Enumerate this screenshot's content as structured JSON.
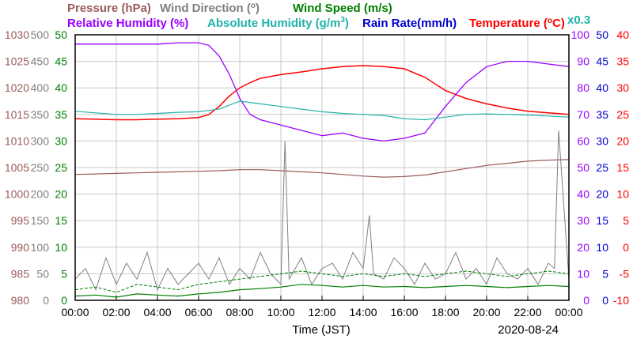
{
  "chart_data": {
    "type": "line",
    "date": "2020-08-24",
    "xlabel": "Time (JST)",
    "x_ticks": [
      "00:00",
      "02:00",
      "04:00",
      "06:00",
      "08:00",
      "10:00",
      "12:00",
      "14:00",
      "16:00",
      "18:00",
      "20:00",
      "22:00",
      "00:00"
    ],
    "xlim_hours": [
      0,
      24
    ],
    "legend": {
      "pressure": "Pressure (hPa)",
      "wind_dir_pre": "Wind Direction (",
      "wind_dir_deg": "o",
      "wind_dir_post": ")",
      "wind_speed": "Wind Speed (m/s)",
      "rh": "Relative Humidity (%)",
      "ah_pre": "Absolute Humidity (g/m",
      "ah_sup": "3",
      "ah_post": ")",
      "rain": "Rain Rate(mm/h)",
      "temp_pre": "Temperature (",
      "temp_deg": "o",
      "temp_post": "C)",
      "rain_scale": "x0.3"
    },
    "axes": {
      "pressure": {
        "min": 980,
        "max": 1030,
        "ticks": [
          980,
          985,
          990,
          995,
          1000,
          1005,
          1010,
          1015,
          1020,
          1025,
          1030
        ],
        "color": "#9b5a5a"
      },
      "wind_direction": {
        "min": 0,
        "max": 500,
        "ticks": [
          0,
          50,
          100,
          150,
          200,
          250,
          300,
          350,
          400,
          450,
          500
        ],
        "color": "#808080"
      },
      "wind_speed": {
        "min": 0,
        "max": 50,
        "ticks": [
          0,
          5,
          10,
          15,
          20,
          25,
          30,
          35,
          40,
          45,
          50
        ],
        "color": "#008000"
      },
      "relative_humidity": {
        "min": 0,
        "max": 100,
        "ticks": [
          0,
          10,
          20,
          30,
          40,
          50,
          60,
          70,
          80,
          90,
          100
        ],
        "color": "#9900ff"
      },
      "rain_rate": {
        "min": 0,
        "max": 50,
        "ticks": [
          0,
          5,
          10,
          15,
          20,
          25,
          30,
          35,
          40,
          45,
          50
        ],
        "color": "#0000cc"
      },
      "temperature": {
        "min": -10,
        "max": 40,
        "ticks": [
          -10,
          -5,
          0,
          5,
          10,
          15,
          20,
          25,
          30,
          35,
          40
        ],
        "color": "#ff0000"
      }
    },
    "colors": {
      "pressure": "#9b5a5a",
      "wind_direction": "#808080",
      "wind_speed": "#008000",
      "relative_humidity": "#9900ff",
      "absolute_humidity": "#20b2aa",
      "rain_rate": "#0000cc",
      "temperature": "#ff0000",
      "grid": "#c8c8c8"
    },
    "series": [
      {
        "key": "pressure",
        "axis": "pressure",
        "x": [
          0,
          1,
          2,
          3,
          4,
          5,
          6,
          7,
          8,
          9,
          10,
          11,
          12,
          13,
          14,
          15,
          16,
          17,
          18,
          19,
          20,
          21,
          22,
          23,
          24
        ],
        "y": [
          1003.7,
          1003.8,
          1003.9,
          1004.0,
          1004.1,
          1004.2,
          1004.3,
          1004.4,
          1004.6,
          1004.6,
          1004.4,
          1004.2,
          1004.0,
          1003.7,
          1003.4,
          1003.2,
          1003.3,
          1003.6,
          1004.2,
          1004.8,
          1005.4,
          1005.8,
          1006.2,
          1006.4,
          1006.5
        ]
      },
      {
        "key": "temperature",
        "axis": "temperature",
        "x": [
          0,
          1,
          2,
          3,
          4,
          5,
          6,
          6.5,
          7,
          7.5,
          8,
          8.5,
          9,
          10,
          11,
          12,
          13,
          14,
          15,
          16,
          17,
          18,
          19,
          20,
          21,
          22,
          23,
          24
        ],
        "y": [
          24.2,
          24.1,
          24.0,
          24.0,
          24.1,
          24.2,
          24.4,
          25.0,
          26.5,
          28.5,
          30.0,
          31.0,
          31.8,
          32.5,
          33.0,
          33.6,
          34.0,
          34.2,
          34.0,
          33.6,
          32.0,
          29.5,
          28.0,
          27.0,
          26.2,
          25.6,
          25.3,
          25.0
        ]
      },
      {
        "key": "relative_humidity",
        "axis": "relative_humidity",
        "x": [
          0,
          1,
          2,
          3,
          4,
          5,
          6,
          6.5,
          7,
          7.5,
          8,
          8.5,
          9,
          10,
          11,
          12,
          13,
          14,
          15,
          16,
          17,
          17.5,
          18,
          19,
          20,
          21,
          22,
          23,
          24
        ],
        "y": [
          96.5,
          96.5,
          96.5,
          96.5,
          96.5,
          97,
          97,
          96,
          92,
          85,
          76,
          70,
          68,
          66,
          64,
          62,
          63,
          61,
          60,
          61,
          63,
          68,
          73,
          82,
          88,
          90,
          90,
          89,
          88
        ]
      },
      {
        "key": "absolute_humidity",
        "axis": "wind_speed",
        "x": [
          0,
          1,
          2,
          3,
          4,
          5,
          6,
          7,
          8,
          9,
          10,
          11,
          12,
          13,
          14,
          15,
          16,
          17,
          18,
          19,
          20,
          21,
          22,
          23,
          24
        ],
        "y": [
          35.6,
          35.3,
          35.0,
          35.0,
          35.2,
          35.4,
          35.5,
          36.0,
          37.5,
          37.0,
          36.5,
          36.0,
          35.5,
          35.2,
          35.0,
          34.8,
          34.2,
          34.0,
          34.5,
          35.0,
          35.1,
          35.0,
          34.9,
          34.7,
          34.5
        ]
      },
      {
        "key": "wind_direction",
        "axis": "wind_direction",
        "x": [
          0,
          0.5,
          1,
          1.5,
          2,
          2.5,
          3,
          3.5,
          4,
          4.5,
          5,
          5.5,
          6,
          6.5,
          7,
          7.5,
          8,
          8.5,
          9,
          9.5,
          10,
          10.2,
          10.4,
          11,
          11.5,
          12,
          12.5,
          13,
          13.5,
          14,
          14.3,
          14.5,
          15,
          15.5,
          16,
          16.5,
          17,
          17.5,
          18,
          18.5,
          19,
          19.5,
          20,
          20.5,
          21,
          21.5,
          22,
          22.5,
          23,
          23.3,
          23.5,
          24
        ],
        "y": [
          40,
          60,
          20,
          80,
          30,
          70,
          40,
          90,
          20,
          60,
          30,
          50,
          70,
          40,
          80,
          30,
          60,
          40,
          90,
          50,
          30,
          300,
          40,
          80,
          30,
          60,
          70,
          40,
          90,
          60,
          160,
          50,
          40,
          80,
          60,
          30,
          70,
          40,
          50,
          90,
          40,
          60,
          30,
          80,
          50,
          40,
          60,
          30,
          70,
          60,
          320,
          40
        ]
      },
      {
        "key": "wind_speed",
        "axis": "wind_speed",
        "x": [
          0,
          1,
          2,
          3,
          4,
          5,
          6,
          7,
          8,
          9,
          10,
          11,
          12,
          13,
          14,
          15,
          16,
          17,
          18,
          19,
          20,
          21,
          22,
          23,
          24
        ],
        "y": [
          2.0,
          2.5,
          1.5,
          3.0,
          2.5,
          2.0,
          3.0,
          3.5,
          4.0,
          4.5,
          5.0,
          5.5,
          5.0,
          4.5,
          5.0,
          4.5,
          5.0,
          4.5,
          5.0,
          5.5,
          5.0,
          4.5,
          5.0,
          5.5,
          5.0
        ]
      },
      {
        "key": "wind_speed_avg",
        "axis": "wind_speed",
        "x": [
          0,
          1,
          2,
          3,
          4,
          5,
          6,
          7,
          8,
          9,
          10,
          11,
          12,
          13,
          14,
          15,
          16,
          17,
          18,
          19,
          20,
          21,
          22,
          23,
          24
        ],
        "y": [
          0.8,
          1.0,
          0.6,
          1.2,
          1.0,
          0.8,
          1.2,
          1.5,
          2.0,
          2.2,
          2.5,
          3.0,
          2.8,
          2.5,
          2.8,
          2.5,
          2.6,
          2.4,
          2.6,
          2.8,
          2.6,
          2.4,
          2.6,
          2.8,
          2.6
        ]
      }
    ]
  }
}
